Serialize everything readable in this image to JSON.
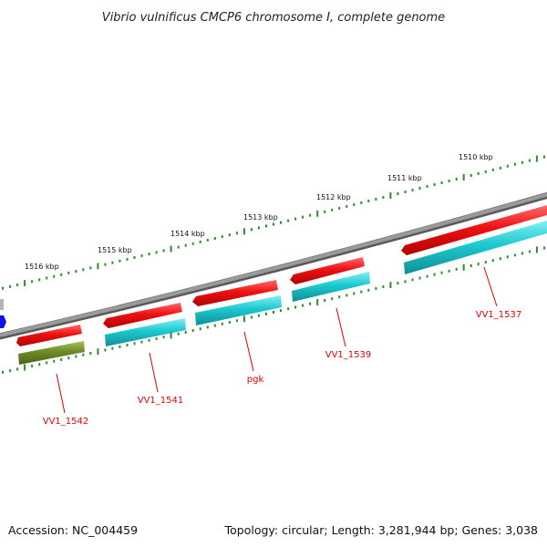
{
  "title": "Vibrio vulnificus CMCP6 chromosome I, complete genome",
  "footer": {
    "accession": "Accession: NC_004459",
    "topology": "Topology: circular; Length: 3,281,944 bp; Genes: 3,038"
  },
  "colors": {
    "backbone": "#8a8a8a",
    "forward_gene": "#ee1111",
    "reverse_cds": "#1cc9d0",
    "olive_gene": "#6e8b2a",
    "ticks": "#2e8b2e",
    "label": "#e00000",
    "partial_marker": "#1010ee"
  },
  "scale_labels": [
    "1516 kbp",
    "1515 kbp",
    "1514 kbp",
    "1513 kbp",
    "1512 kbp",
    "1511 kbp",
    "1510 kbp"
  ],
  "gene_labels": [
    "VV1_1542",
    "VV1_1541",
    "pgk",
    "VV1_1539",
    "VV1_1537"
  ]
}
